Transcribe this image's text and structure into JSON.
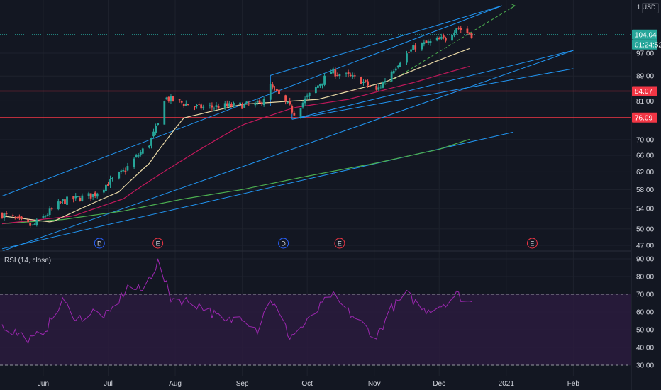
{
  "header": {
    "currency_prefix": "1",
    "currency": "USD"
  },
  "rsi_panel": {
    "label": "RSI (14, close)"
  },
  "price_axis": {
    "ticks": [
      "97.00",
      "89.00",
      "81.00",
      "76.00",
      "70.00",
      "66.00",
      "62.00",
      "58.00",
      "54.00",
      "50.00",
      "47.00"
    ],
    "tags": [
      {
        "name": "last-price-tag",
        "text": "104.04",
        "color": "#26a69a"
      },
      {
        "name": "countdown-tag",
        "text": "01:24:52",
        "color": "#26a69a"
      },
      {
        "name": "resistance-tag",
        "text": "84.07",
        "color": "#f23645"
      },
      {
        "name": "support-tag",
        "text": "76.09",
        "color": "#f23645"
      }
    ]
  },
  "rsi_axis": {
    "ticks": [
      "90.00",
      "80.00",
      "70.00",
      "60.00",
      "50.00",
      "40.00",
      "30.00"
    ]
  },
  "time_axis": {
    "labels": [
      "Jun",
      "Jul",
      "Aug",
      "Sep",
      "Oct",
      "Nov",
      "Dec",
      "2021",
      "Feb"
    ]
  },
  "events": [
    {
      "label": "D",
      "color": "#2962ff"
    },
    {
      "label": "E",
      "color": "#f23645"
    },
    {
      "label": "D",
      "color": "#2962ff"
    },
    {
      "label": "E",
      "color": "#f23645"
    },
    {
      "label": "E",
      "color": "#f23645"
    }
  ],
  "colors": {
    "background": "#131722",
    "up": "#26a69a",
    "down": "#ef5350",
    "ma_short": "#e9d8a6",
    "ma_mid": "#c2185b",
    "ma_long": "#4caf50",
    "channel": "#2196f3",
    "rsi": "#9c27b0",
    "rsi_band": "#2a1b3d",
    "hline": "#f23645",
    "arrow": "#4caf50"
  },
  "chart_data": {
    "type": "candlestick",
    "instrument_currency": "USD",
    "x_range": [
      "2020-05-13",
      "2021-02-22"
    ],
    "price_ylim": [
      45.5,
      117
    ],
    "price_scale": "log",
    "last_price": 104.04,
    "horizontal_levels": [
      84.07,
      76.09
    ],
    "ohlc_anchors": [
      {
        "date": "2020-05-13",
        "close": 52.8
      },
      {
        "date": "2020-05-27",
        "close": 50.5
      },
      {
        "date": "2020-06-10",
        "close": 55.5
      },
      {
        "date": "2020-06-24",
        "close": 56.8
      },
      {
        "date": "2020-07-08",
        "close": 62.0
      },
      {
        "date": "2020-07-20",
        "close": 69.0
      },
      {
        "date": "2020-07-24",
        "close": 74.0
      },
      {
        "date": "2020-07-27",
        "close": 82.0
      },
      {
        "date": "2020-08-12",
        "close": 79.0
      },
      {
        "date": "2020-09-09",
        "close": 80.0
      },
      {
        "date": "2020-09-14",
        "close": 85.5
      },
      {
        "date": "2020-09-25",
        "close": 77.5
      },
      {
        "date": "2020-10-12",
        "close": 90.5
      },
      {
        "date": "2020-10-26",
        "close": 87.5
      },
      {
        "date": "2020-11-02",
        "close": 84.0
      },
      {
        "date": "2020-11-13",
        "close": 94.5
      },
      {
        "date": "2020-11-20",
        "close": 99.5
      },
      {
        "date": "2020-12-04",
        "close": 102.5
      },
      {
        "date": "2020-12-09",
        "close": 107.0
      },
      {
        "date": "2020-12-16",
        "close": 104.04
      }
    ],
    "ma_short_anchors": [
      {
        "date": "2020-05-13",
        "value": 52.5
      },
      {
        "date": "2020-06-05",
        "value": 51.3
      },
      {
        "date": "2020-07-06",
        "value": 57.5
      },
      {
        "date": "2020-07-20",
        "value": 64.0
      },
      {
        "date": "2020-08-05",
        "value": 76.0
      },
      {
        "date": "2020-09-01",
        "value": 80.0
      },
      {
        "date": "2020-10-06",
        "value": 81.5
      },
      {
        "date": "2020-11-06",
        "value": 87.0
      },
      {
        "date": "2020-12-16",
        "value": 99.0
      }
    ],
    "ma_mid_anchors": [
      {
        "date": "2020-05-13",
        "value": 51.0
      },
      {
        "date": "2020-06-15",
        "value": 52.5
      },
      {
        "date": "2020-07-08",
        "value": 56.0
      },
      {
        "date": "2020-08-05",
        "value": 65.0
      },
      {
        "date": "2020-09-01",
        "value": 74.0
      },
      {
        "date": "2020-09-25",
        "value": 79.0
      },
      {
        "date": "2020-10-20",
        "value": 81.5
      },
      {
        "date": "2020-11-20",
        "value": 87.0
      },
      {
        "date": "2020-12-16",
        "value": 92.5
      }
    ],
    "ma_long_anchors": [
      {
        "date": "2020-05-13",
        "value": 51.0
      },
      {
        "date": "2020-06-10",
        "value": 51.8
      },
      {
        "date": "2020-07-08",
        "value": 53.5
      },
      {
        "date": "2020-08-05",
        "value": 56.0
      },
      {
        "date": "2020-09-01",
        "value": 58.0
      },
      {
        "date": "2020-10-01",
        "value": 61.0
      },
      {
        "date": "2020-11-01",
        "value": 64.0
      },
      {
        "date": "2020-12-01",
        "value": 67.5
      },
      {
        "date": "2020-12-16",
        "value": 70.3
      }
    ],
    "rsi": {
      "ylim": [
        26,
        97
      ],
      "bands": [
        70,
        30
      ],
      "anchors": [
        {
          "date": "2020-05-13",
          "value": 52
        },
        {
          "date": "2020-05-20",
          "value": 48
        },
        {
          "date": "2020-05-27",
          "value": 44
        },
        {
          "date": "2020-06-03",
          "value": 52
        },
        {
          "date": "2020-06-10",
          "value": 66
        },
        {
          "date": "2020-06-17",
          "value": 56
        },
        {
          "date": "2020-06-24",
          "value": 60
        },
        {
          "date": "2020-07-01",
          "value": 58
        },
        {
          "date": "2020-07-10",
          "value": 74
        },
        {
          "date": "2020-07-17",
          "value": 72
        },
        {
          "date": "2020-07-24",
          "value": 88
        },
        {
          "date": "2020-07-30",
          "value": 68
        },
        {
          "date": "2020-08-07",
          "value": 66
        },
        {
          "date": "2020-08-14",
          "value": 63
        },
        {
          "date": "2020-08-24",
          "value": 54
        },
        {
          "date": "2020-09-01",
          "value": 58
        },
        {
          "date": "2020-09-08",
          "value": 50
        },
        {
          "date": "2020-09-14",
          "value": 68
        },
        {
          "date": "2020-09-23",
          "value": 46
        },
        {
          "date": "2020-10-01",
          "value": 54
        },
        {
          "date": "2020-10-12",
          "value": 70
        },
        {
          "date": "2020-10-20",
          "value": 60
        },
        {
          "date": "2020-11-02",
          "value": 46
        },
        {
          "date": "2020-11-09",
          "value": 62
        },
        {
          "date": "2020-11-16",
          "value": 70
        },
        {
          "date": "2020-11-24",
          "value": 61
        },
        {
          "date": "2020-12-02",
          "value": 64
        },
        {
          "date": "2020-12-09",
          "value": 70
        },
        {
          "date": "2020-12-16",
          "value": 65
        }
      ]
    }
  }
}
